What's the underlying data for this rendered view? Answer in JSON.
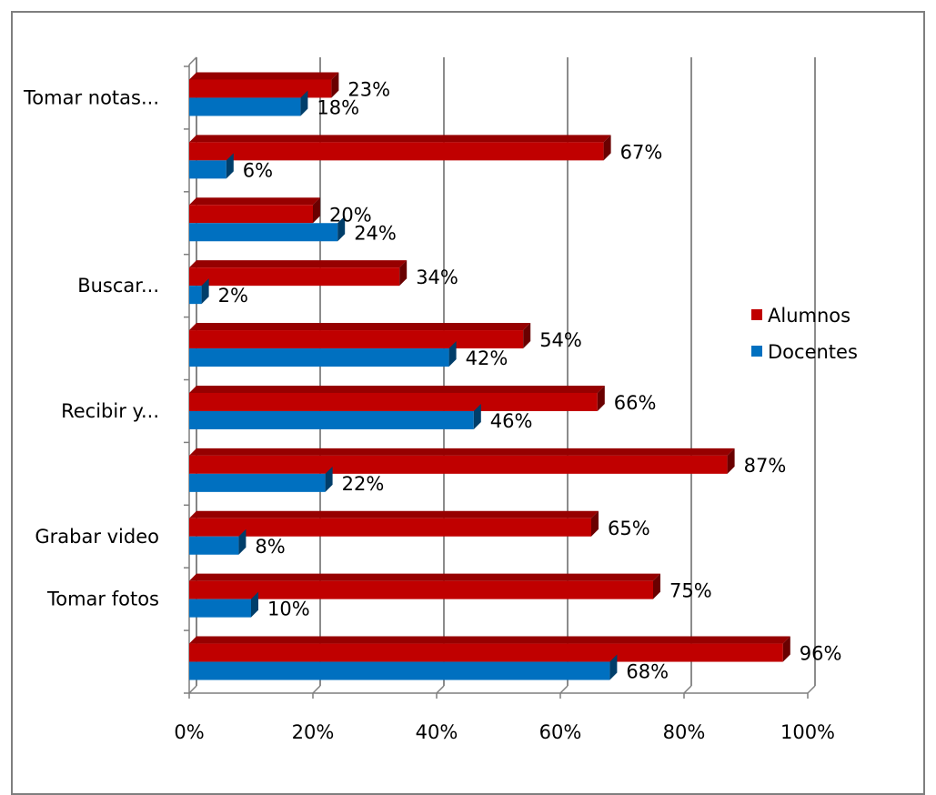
{
  "chart_data": {
    "type": "bar",
    "orientation": "horizontal",
    "style": "3d-clustered",
    "title": "",
    "xlabel": "",
    "ylabel": "",
    "xlim": [
      0,
      1
    ],
    "x_ticks": [
      "0%",
      "20%",
      "40%",
      "60%",
      "80%",
      "100%"
    ],
    "grid": true,
    "legend_position": "right",
    "categories": [
      "Tomar notas...",
      "",
      "",
      "Buscar...",
      "",
      "Recibir y...",
      "",
      "Grabar video",
      "Tomar fotos",
      ""
    ],
    "series": [
      {
        "name": "Alumnos",
        "color": "#c00000",
        "values": [
          0.23,
          0.67,
          0.2,
          0.34,
          0.54,
          0.66,
          0.87,
          0.65,
          0.75,
          0.96
        ],
        "labels": [
          "23%",
          "67%",
          "20%",
          "34%",
          "54%",
          "66%",
          "87%",
          "65%",
          "75%",
          "96%"
        ]
      },
      {
        "name": "Docentes",
        "color": "#0070c0",
        "values": [
          0.18,
          0.06,
          0.24,
          0.02,
          0.42,
          0.46,
          0.22,
          0.08,
          0.1,
          0.68
        ],
        "labels": [
          "18%",
          "6%",
          "24%",
          "2%",
          "42%",
          "46%",
          "22%",
          "8%",
          "10%",
          "68%"
        ]
      }
    ]
  }
}
